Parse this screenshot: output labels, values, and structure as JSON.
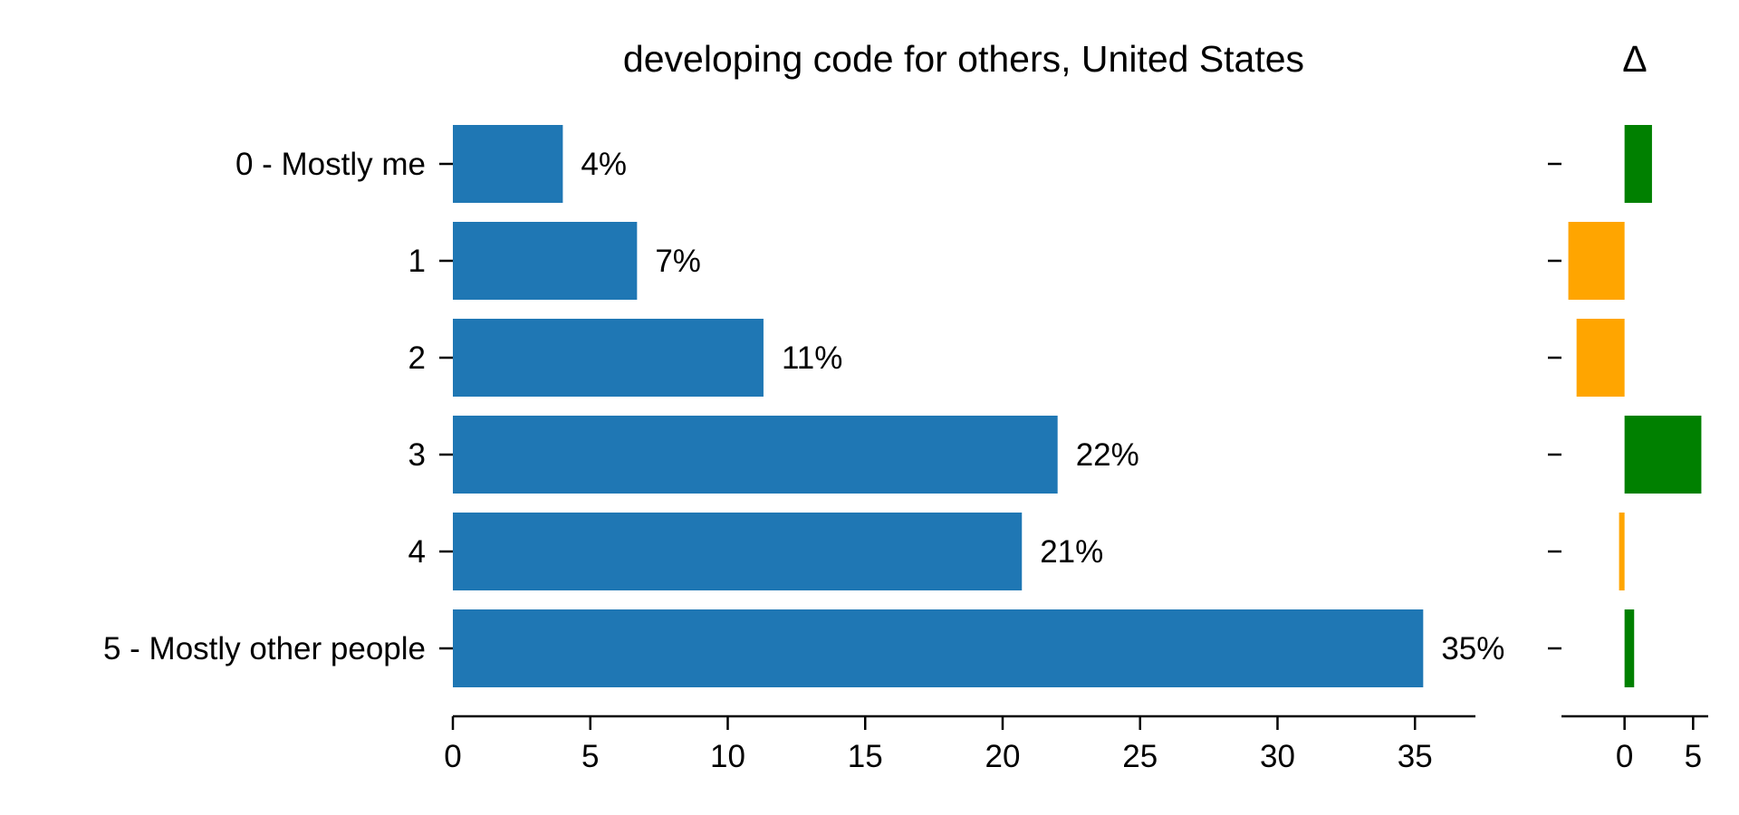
{
  "chart_data": [
    {
      "type": "bar",
      "orientation": "horizontal",
      "title": "developing code for others, United States",
      "categories": [
        "0 - Mostly me",
        "1",
        "2",
        "3",
        "4",
        "5 - Mostly other people"
      ],
      "values": [
        4,
        6.7,
        11.3,
        22,
        20.7,
        35.3
      ],
      "data_labels": [
        "4%",
        "7%",
        "11%",
        "22%",
        "21%",
        "35%"
      ],
      "xlim": [
        0,
        37.2
      ],
      "xticks": [
        0,
        5,
        10,
        15,
        20,
        25,
        30,
        35
      ],
      "xlabel": "",
      "ylabel": "",
      "grid": false,
      "bar_color": "#1f77b4"
    },
    {
      "type": "bar",
      "orientation": "horizontal",
      "title": "Δ",
      "categories": [
        "0 - Mostly me",
        "1",
        "2",
        "3",
        "4",
        "5 - Mostly other people"
      ],
      "values": [
        2,
        -4.1,
        -3.5,
        5.6,
        -0.4,
        0.7
      ],
      "xlim": [
        -4.6,
        6.1
      ],
      "xticks": [
        0,
        5
      ],
      "grid": false,
      "positive_color": "#008000",
      "negative_color": "#ffa500"
    }
  ]
}
